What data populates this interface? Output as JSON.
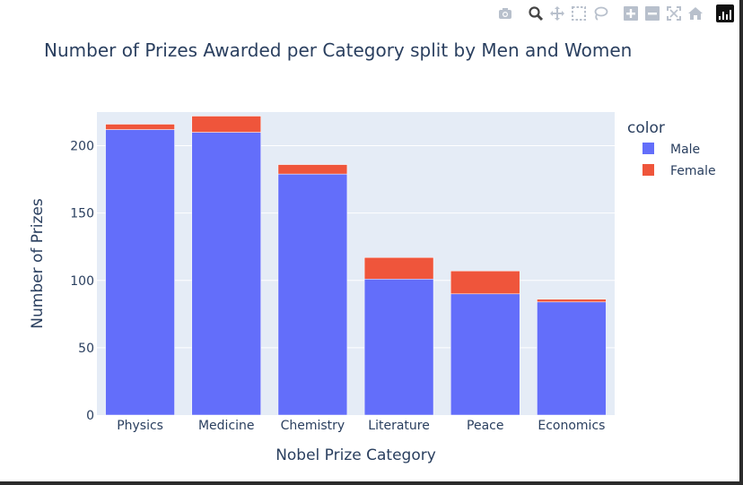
{
  "toolbar": {
    "icons": [
      "camera-icon",
      "zoom-icon",
      "pan-icon",
      "box-select-icon",
      "lasso-icon",
      "zoom-in-icon",
      "zoom-out-icon",
      "autoscale-icon",
      "reset-axes-icon",
      "plotly-logo-icon"
    ]
  },
  "colors": {
    "male": "#636efa",
    "female": "#ef553b",
    "plot_bg": "#e5ecf6",
    "text": "#2a3f5f"
  },
  "chart_data": {
    "type": "bar",
    "barmode": "stack",
    "title": "Number of Prizes Awarded per Category split by Men and Women",
    "xlabel": "Nobel Prize Category",
    "ylabel": "Number of Prizes",
    "ylim": [
      0,
      225
    ],
    "yticks": [
      0,
      50,
      100,
      150,
      200
    ],
    "grid": true,
    "categories": [
      "Physics",
      "Medicine",
      "Chemistry",
      "Literature",
      "Peace",
      "Economics"
    ],
    "legend": {
      "title": "color",
      "position": "right"
    },
    "series": [
      {
        "name": "Male",
        "values": [
          212,
          210,
          179,
          101,
          90,
          84
        ]
      },
      {
        "name": "Female",
        "values": [
          4,
          12,
          7,
          16,
          17,
          2
        ]
      }
    ]
  }
}
